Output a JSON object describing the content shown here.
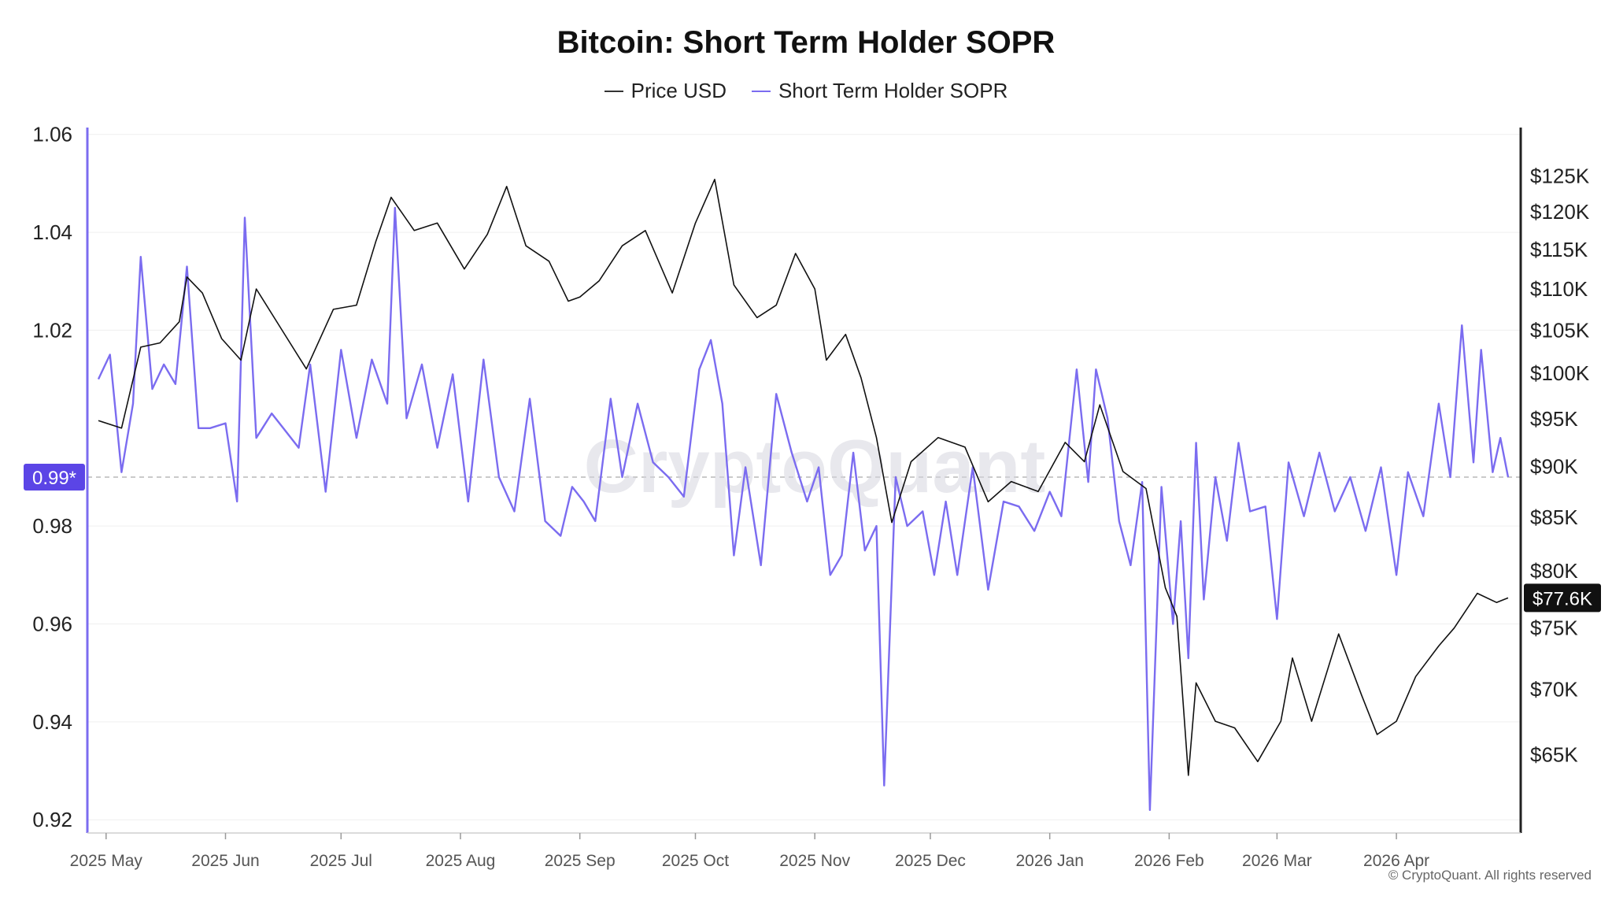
{
  "chart_data": {
    "type": "line",
    "title": "Bitcoin: Short Term Holder SOPR",
    "legend_position": "top-center",
    "grid": "horizontal",
    "x_range": [
      "2025-04-29",
      "2026-04-30"
    ],
    "x_tick_labels": [
      "2025 May",
      "2025 Jun",
      "2025 Jul",
      "2025 Aug",
      "2025 Sep",
      "2025 Oct",
      "2025 Nov",
      "2025 Dec",
      "2026 Jan",
      "2026 Feb",
      "2026 Mar",
      "2026 Apr"
    ],
    "x_tick_dates": [
      "2025-05-01",
      "2025-06-01",
      "2025-07-01",
      "2025-08-01",
      "2025-09-01",
      "2025-10-01",
      "2025-11-01",
      "2025-12-01",
      "2026-01-01",
      "2026-02-01",
      "2026-03-01",
      "2026-04-01"
    ],
    "y_left": {
      "ticks": [
        0.92,
        0.94,
        0.96,
        0.98,
        1.02,
        1.04,
        1.06
      ],
      "range": [
        0.9173,
        1.0614
      ],
      "reference": 0.99,
      "reference_label": "0.99*"
    },
    "y_right": {
      "scale": "log",
      "ticks": [
        65000,
        70000,
        75000,
        80000,
        85000,
        90000,
        95000,
        100000,
        105000,
        110000,
        115000,
        120000,
        125000
      ],
      "tick_labels": [
        "$65K",
        "$70K",
        "$75K",
        "$80K",
        "$85K",
        "$90K",
        "$95K",
        "$100K",
        "$105K",
        "$110K",
        "$115K",
        "$120K",
        "$125K"
      ],
      "range": [
        59500,
        132000
      ],
      "last_value_label": "$77.6K"
    },
    "series": [
      {
        "name": "Price USD",
        "axis": "right",
        "color": "#111111",
        "points": [
          [
            "2025-04-29",
            94800
          ],
          [
            "2025-05-05",
            94000
          ],
          [
            "2025-05-10",
            103000
          ],
          [
            "2025-05-15",
            103500
          ],
          [
            "2025-05-20",
            106000
          ],
          [
            "2025-05-22",
            111500
          ],
          [
            "2025-05-26",
            109500
          ],
          [
            "2025-05-31",
            104000
          ],
          [
            "2025-06-05",
            101500
          ],
          [
            "2025-06-09",
            110000
          ],
          [
            "2025-06-15",
            105500
          ],
          [
            "2025-06-22",
            100500
          ],
          [
            "2025-06-29",
            107500
          ],
          [
            "2025-07-05",
            108000
          ],
          [
            "2025-07-10",
            116000
          ],
          [
            "2025-07-14",
            122000
          ],
          [
            "2025-07-20",
            117500
          ],
          [
            "2025-07-26",
            118500
          ],
          [
            "2025-08-02",
            112500
          ],
          [
            "2025-08-08",
            117000
          ],
          [
            "2025-08-13",
            123500
          ],
          [
            "2025-08-18",
            115500
          ],
          [
            "2025-08-24",
            113500
          ],
          [
            "2025-08-29",
            108500
          ],
          [
            "2025-09-01",
            109000
          ],
          [
            "2025-09-06",
            111000
          ],
          [
            "2025-09-12",
            115500
          ],
          [
            "2025-09-18",
            117500
          ],
          [
            "2025-09-25",
            109500
          ],
          [
            "2025-10-01",
            118500
          ],
          [
            "2025-10-06",
            124500
          ],
          [
            "2025-10-11",
            110500
          ],
          [
            "2025-10-17",
            106500
          ],
          [
            "2025-10-22",
            108000
          ],
          [
            "2025-10-27",
            114500
          ],
          [
            "2025-11-01",
            110000
          ],
          [
            "2025-11-04",
            101500
          ],
          [
            "2025-11-09",
            104500
          ],
          [
            "2025-11-13",
            99500
          ],
          [
            "2025-11-17",
            93000
          ],
          [
            "2025-11-21",
            84500
          ],
          [
            "2025-11-26",
            90500
          ],
          [
            "2025-12-03",
            93000
          ],
          [
            "2025-12-10",
            92000
          ],
          [
            "2025-12-16",
            86500
          ],
          [
            "2025-12-22",
            88500
          ],
          [
            "2025-12-29",
            87500
          ],
          [
            "2026-01-05",
            92500
          ],
          [
            "2026-01-10",
            90500
          ],
          [
            "2026-01-14",
            96500
          ],
          [
            "2026-01-20",
            89500
          ],
          [
            "2026-01-26",
            87800
          ],
          [
            "2026-01-31",
            78500
          ],
          [
            "2026-02-03",
            76000
          ],
          [
            "2026-02-06",
            63500
          ],
          [
            "2026-02-08",
            70500
          ],
          [
            "2026-02-13",
            67500
          ],
          [
            "2026-02-18",
            67000
          ],
          [
            "2026-02-24",
            64500
          ],
          [
            "2026-03-02",
            67500
          ],
          [
            "2026-03-05",
            72500
          ],
          [
            "2026-03-10",
            67500
          ],
          [
            "2026-03-17",
            74500
          ],
          [
            "2026-03-23",
            69500
          ],
          [
            "2026-03-27",
            66500
          ],
          [
            "2026-04-01",
            67500
          ],
          [
            "2026-04-06",
            71000
          ],
          [
            "2026-04-12",
            73500
          ],
          [
            "2026-04-16",
            75000
          ],
          [
            "2026-04-22",
            78000
          ],
          [
            "2026-04-27",
            77200
          ],
          [
            "2026-04-30",
            77600
          ]
        ]
      },
      {
        "name": "Short Term Holder SOPR",
        "axis": "left",
        "color": "#7b6cf0",
        "points": [
          [
            "2025-04-29",
            1.01
          ],
          [
            "2025-05-02",
            1.015
          ],
          [
            "2025-05-05",
            0.991
          ],
          [
            "2025-05-08",
            1.005
          ],
          [
            "2025-05-10",
            1.035
          ],
          [
            "2025-05-13",
            1.008
          ],
          [
            "2025-05-16",
            1.013
          ],
          [
            "2025-05-19",
            1.009
          ],
          [
            "2025-05-22",
            1.033
          ],
          [
            "2025-05-25",
            1.0
          ],
          [
            "2025-05-28",
            1.0
          ],
          [
            "2025-06-01",
            1.001
          ],
          [
            "2025-06-04",
            0.985
          ],
          [
            "2025-06-06",
            1.043
          ],
          [
            "2025-06-09",
            0.998
          ],
          [
            "2025-06-13",
            1.003
          ],
          [
            "2025-06-16",
            1.0
          ],
          [
            "2025-06-20",
            0.996
          ],
          [
            "2025-06-23",
            1.013
          ],
          [
            "2025-06-27",
            0.987
          ],
          [
            "2025-07-01",
            1.016
          ],
          [
            "2025-07-05",
            0.998
          ],
          [
            "2025-07-09",
            1.014
          ],
          [
            "2025-07-13",
            1.005
          ],
          [
            "2025-07-15",
            1.045
          ],
          [
            "2025-07-18",
            1.002
          ],
          [
            "2025-07-22",
            1.013
          ],
          [
            "2025-07-26",
            0.996
          ],
          [
            "2025-07-30",
            1.011
          ],
          [
            "2025-08-03",
            0.985
          ],
          [
            "2025-08-07",
            1.014
          ],
          [
            "2025-08-11",
            0.99
          ],
          [
            "2025-08-15",
            0.983
          ],
          [
            "2025-08-19",
            1.006
          ],
          [
            "2025-08-23",
            0.981
          ],
          [
            "2025-08-27",
            0.978
          ],
          [
            "2025-08-30",
            0.988
          ],
          [
            "2025-09-02",
            0.985
          ],
          [
            "2025-09-05",
            0.981
          ],
          [
            "2025-09-09",
            1.006
          ],
          [
            "2025-09-12",
            0.99
          ],
          [
            "2025-09-16",
            1.005
          ],
          [
            "2025-09-20",
            0.993
          ],
          [
            "2025-09-24",
            0.99
          ],
          [
            "2025-09-28",
            0.986
          ],
          [
            "2025-10-02",
            1.012
          ],
          [
            "2025-10-05",
            1.018
          ],
          [
            "2025-10-08",
            1.005
          ],
          [
            "2025-10-11",
            0.974
          ],
          [
            "2025-10-14",
            0.992
          ],
          [
            "2025-10-18",
            0.972
          ],
          [
            "2025-10-22",
            1.007
          ],
          [
            "2025-10-26",
            0.995
          ],
          [
            "2025-10-30",
            0.985
          ],
          [
            "2025-11-02",
            0.992
          ],
          [
            "2025-11-05",
            0.97
          ],
          [
            "2025-11-08",
            0.974
          ],
          [
            "2025-11-11",
            0.995
          ],
          [
            "2025-11-14",
            0.975
          ],
          [
            "2025-11-17",
            0.98
          ],
          [
            "2025-11-19",
            0.927
          ],
          [
            "2025-11-22",
            0.99
          ],
          [
            "2025-11-25",
            0.98
          ],
          [
            "2025-11-29",
            0.983
          ],
          [
            "2025-12-02",
            0.97
          ],
          [
            "2025-12-05",
            0.985
          ],
          [
            "2025-12-08",
            0.97
          ],
          [
            "2025-12-12",
            0.992
          ],
          [
            "2025-12-16",
            0.967
          ],
          [
            "2025-12-20",
            0.985
          ],
          [
            "2025-12-24",
            0.984
          ],
          [
            "2025-12-28",
            0.979
          ],
          [
            "2026-01-01",
            0.987
          ],
          [
            "2026-01-04",
            0.982
          ],
          [
            "2026-01-08",
            1.012
          ],
          [
            "2026-01-11",
            0.989
          ],
          [
            "2026-01-13",
            1.012
          ],
          [
            "2026-01-16",
            1.002
          ],
          [
            "2026-01-19",
            0.981
          ],
          [
            "2026-01-22",
            0.972
          ],
          [
            "2026-01-25",
            0.989
          ],
          [
            "2026-01-27",
            0.922
          ],
          [
            "2026-01-30",
            0.988
          ],
          [
            "2026-02-02",
            0.96
          ],
          [
            "2026-02-04",
            0.981
          ],
          [
            "2026-02-06",
            0.953
          ],
          [
            "2026-02-08",
            0.997
          ],
          [
            "2026-02-10",
            0.965
          ],
          [
            "2026-02-13",
            0.99
          ],
          [
            "2026-02-16",
            0.977
          ],
          [
            "2026-02-19",
            0.997
          ],
          [
            "2026-02-22",
            0.983
          ],
          [
            "2026-02-26",
            0.984
          ],
          [
            "2026-03-01",
            0.961
          ],
          [
            "2026-03-04",
            0.993
          ],
          [
            "2026-03-08",
            0.982
          ],
          [
            "2026-03-12",
            0.995
          ],
          [
            "2026-03-16",
            0.983
          ],
          [
            "2026-03-20",
            0.99
          ],
          [
            "2026-03-24",
            0.979
          ],
          [
            "2026-03-28",
            0.992
          ],
          [
            "2026-04-01",
            0.97
          ],
          [
            "2026-04-04",
            0.991
          ],
          [
            "2026-04-08",
            0.982
          ],
          [
            "2026-04-12",
            1.005
          ],
          [
            "2026-04-15",
            0.99
          ],
          [
            "2026-04-18",
            1.021
          ],
          [
            "2026-04-21",
            0.993
          ],
          [
            "2026-04-23",
            1.016
          ],
          [
            "2026-04-26",
            0.991
          ],
          [
            "2026-04-28",
            0.998
          ],
          [
            "2026-04-30",
            0.99
          ]
        ]
      }
    ]
  },
  "watermark": "CryptoQuant",
  "copyright": "© CryptoQuant. All rights reserved",
  "colors": {
    "accent": "#5b45e6",
    "sopr": "#7b6cf0",
    "price": "#111111",
    "grid": "#ececec"
  }
}
